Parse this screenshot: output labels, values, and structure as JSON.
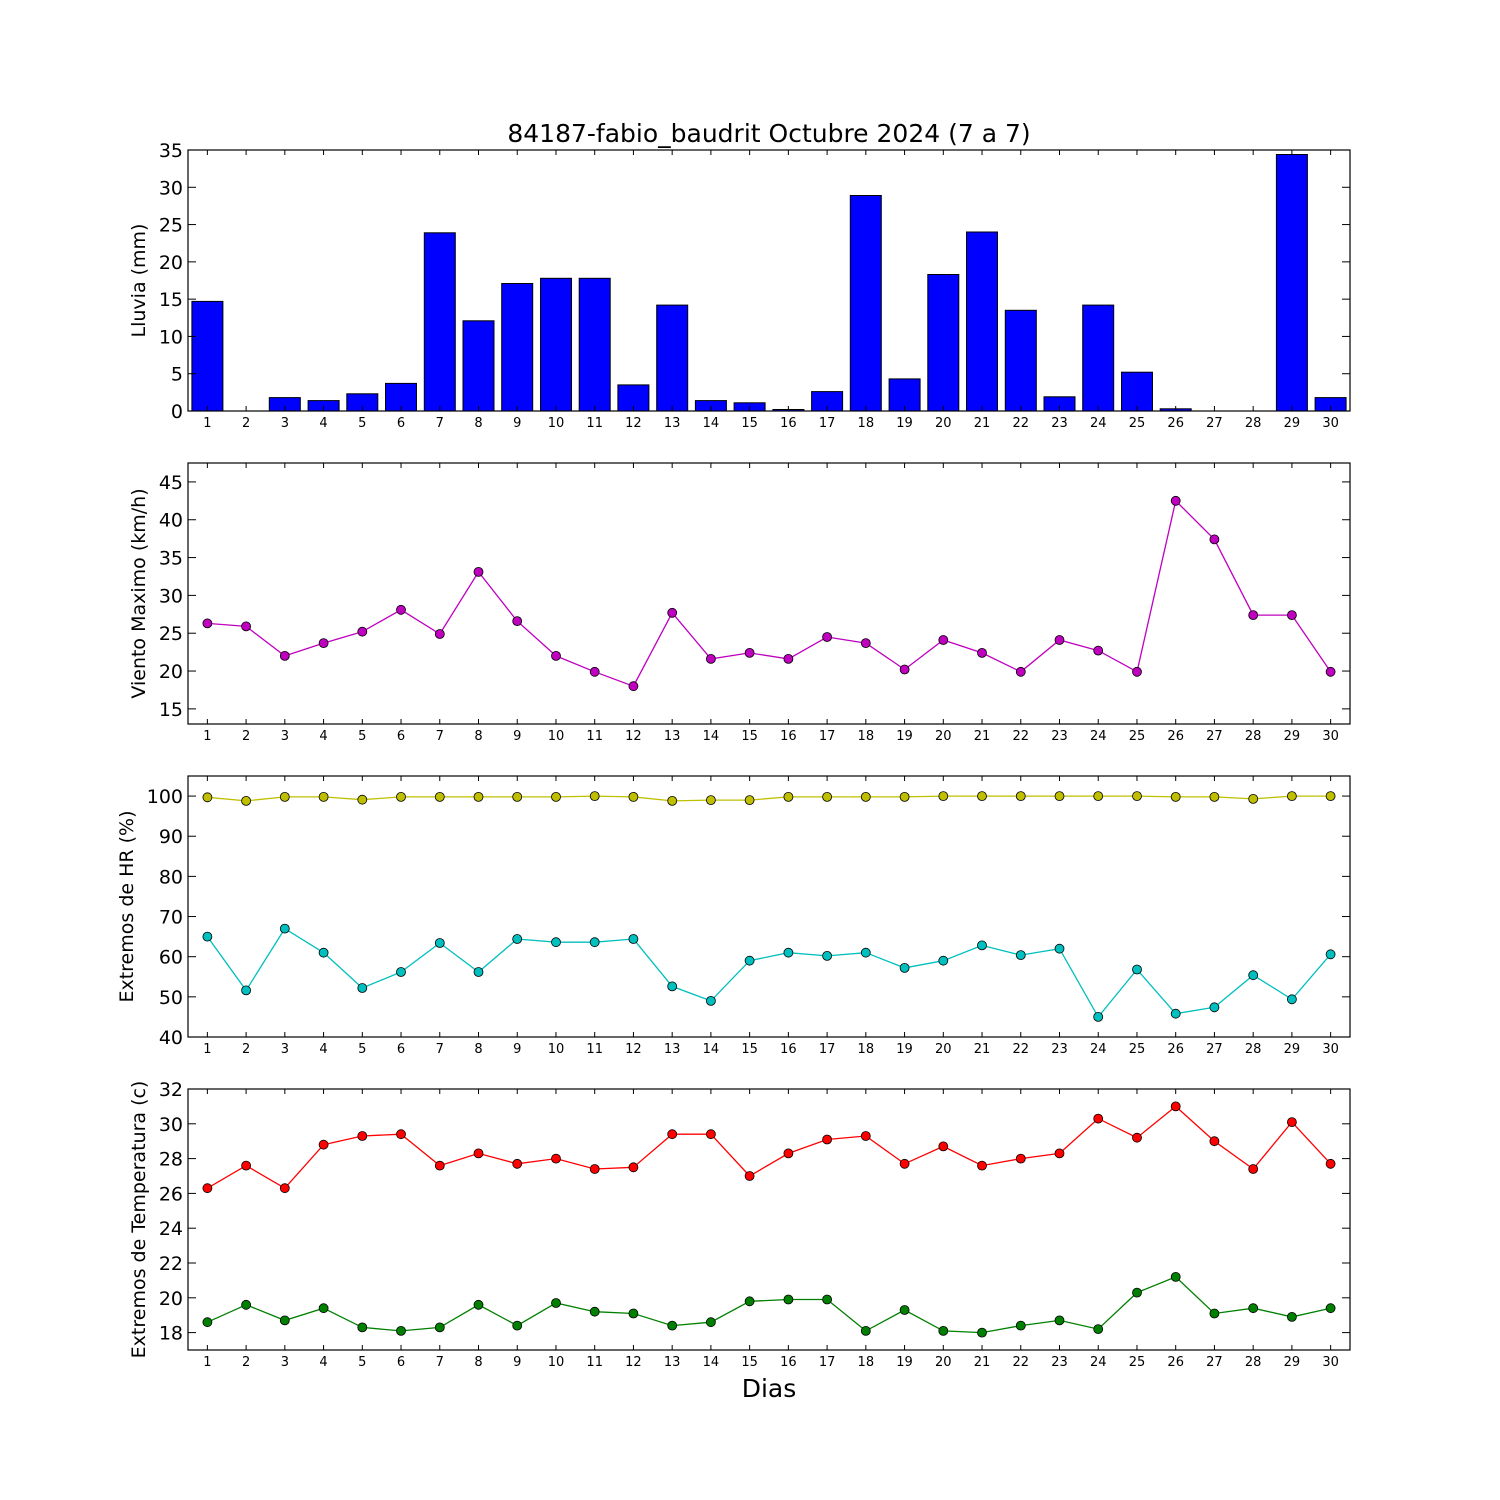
{
  "figure": {
    "title": "84187-fabio_baudrit Octubre 2024  (7 a 7)",
    "xlabel": "Dias"
  },
  "chart_data": [
    {
      "type": "bar",
      "ylabel": "Lluvia (mm)",
      "ylim": [
        0,
        35
      ],
      "yticks": [
        0,
        5,
        10,
        15,
        20,
        25,
        30,
        35
      ],
      "categories": [
        1,
        2,
        3,
        4,
        5,
        6,
        7,
        8,
        9,
        10,
        11,
        12,
        13,
        14,
        15,
        16,
        17,
        18,
        19,
        20,
        21,
        22,
        23,
        24,
        25,
        26,
        27,
        28,
        29,
        30
      ],
      "series": [
        {
          "color": "#0000ff",
          "values": [
            14.7,
            0.0,
            1.8,
            1.4,
            2.3,
            3.7,
            23.9,
            12.1,
            17.1,
            17.8,
            17.8,
            3.5,
            14.2,
            1.4,
            1.1,
            0.2,
            2.6,
            28.9,
            4.3,
            18.3,
            24.0,
            13.5,
            1.9,
            14.2,
            5.2,
            0.3,
            0.0,
            0.0,
            34.4,
            1.8
          ]
        }
      ],
      "grid": false
    },
    {
      "type": "line",
      "ylabel": "Viento Maximo (km/h)",
      "ylim": [
        13,
        47.5
      ],
      "yticks": [
        15,
        20,
        25,
        30,
        35,
        40,
        45
      ],
      "x": [
        1,
        2,
        3,
        4,
        5,
        6,
        7,
        8,
        9,
        10,
        11,
        12,
        13,
        14,
        15,
        16,
        17,
        18,
        19,
        20,
        21,
        22,
        23,
        24,
        25,
        26,
        27,
        28,
        29,
        30
      ],
      "series": [
        {
          "color": "#bf00bf",
          "values": [
            26.3,
            25.9,
            22.0,
            23.7,
            25.2,
            28.1,
            24.9,
            33.1,
            26.6,
            22.0,
            19.9,
            18.0,
            27.7,
            21.6,
            22.4,
            21.6,
            24.5,
            23.7,
            20.2,
            24.1,
            22.4,
            19.9,
            24.1,
            22.7,
            19.9,
            42.5,
            37.4,
            27.4,
            27.4,
            19.9
          ]
        }
      ],
      "grid": false
    },
    {
      "type": "line",
      "ylabel": "Extremos de HR (%)",
      "ylim": [
        40,
        105
      ],
      "yticks": [
        40,
        50,
        60,
        70,
        80,
        90,
        100
      ],
      "x": [
        1,
        2,
        3,
        4,
        5,
        6,
        7,
        8,
        9,
        10,
        11,
        12,
        13,
        14,
        15,
        16,
        17,
        18,
        19,
        20,
        21,
        22,
        23,
        24,
        25,
        26,
        27,
        28,
        29,
        30
      ],
      "series": [
        {
          "color": "#bfbf00",
          "values": [
            99.7,
            98.8,
            99.8,
            99.8,
            99.1,
            99.8,
            99.8,
            99.8,
            99.8,
            99.8,
            100.0,
            99.8,
            98.8,
            99.0,
            99.0,
            99.8,
            99.8,
            99.8,
            99.8,
            100.0,
            100.0,
            100.0,
            100.0,
            100.0,
            100.0,
            99.8,
            99.8,
            99.3,
            100.0,
            100.0
          ]
        },
        {
          "color": "#00bfbf",
          "values": [
            65.0,
            51.6,
            67.0,
            61.0,
            52.2,
            56.2,
            63.4,
            56.2,
            64.4,
            63.6,
            63.6,
            64.4,
            52.6,
            49.0,
            59.0,
            61.0,
            60.2,
            61.0,
            57.2,
            59.0,
            62.8,
            60.4,
            62.0,
            45.0,
            56.8,
            45.8,
            47.4,
            55.4,
            49.4,
            60.6
          ]
        }
      ],
      "grid": false
    },
    {
      "type": "line",
      "ylabel": "Extremos de Temperatura (c)",
      "ylim": [
        17,
        32
      ],
      "yticks": [
        18,
        20,
        22,
        24,
        26,
        28,
        30,
        32
      ],
      "x": [
        1,
        2,
        3,
        4,
        5,
        6,
        7,
        8,
        9,
        10,
        11,
        12,
        13,
        14,
        15,
        16,
        17,
        18,
        19,
        20,
        21,
        22,
        23,
        24,
        25,
        26,
        27,
        28,
        29,
        30
      ],
      "series": [
        {
          "color": "#ff0000",
          "values": [
            26.3,
            27.6,
            26.3,
            28.8,
            29.3,
            29.4,
            27.6,
            28.3,
            27.7,
            28.0,
            27.4,
            27.5,
            29.4,
            29.4,
            27.0,
            28.3,
            29.1,
            29.3,
            27.7,
            28.7,
            27.6,
            28.0,
            28.3,
            30.3,
            29.2,
            31.0,
            29.0,
            27.4,
            30.1,
            27.7
          ]
        },
        {
          "color": "#008000",
          "values": [
            18.6,
            19.6,
            18.7,
            19.4,
            18.3,
            18.1,
            18.3,
            19.6,
            18.4,
            19.7,
            19.2,
            19.1,
            18.4,
            18.6,
            19.8,
            19.9,
            19.9,
            18.1,
            19.3,
            18.1,
            18.0,
            18.4,
            18.7,
            18.2,
            20.3,
            21.2,
            19.1,
            19.4,
            18.9,
            19.4
          ]
        }
      ],
      "grid": false
    }
  ]
}
